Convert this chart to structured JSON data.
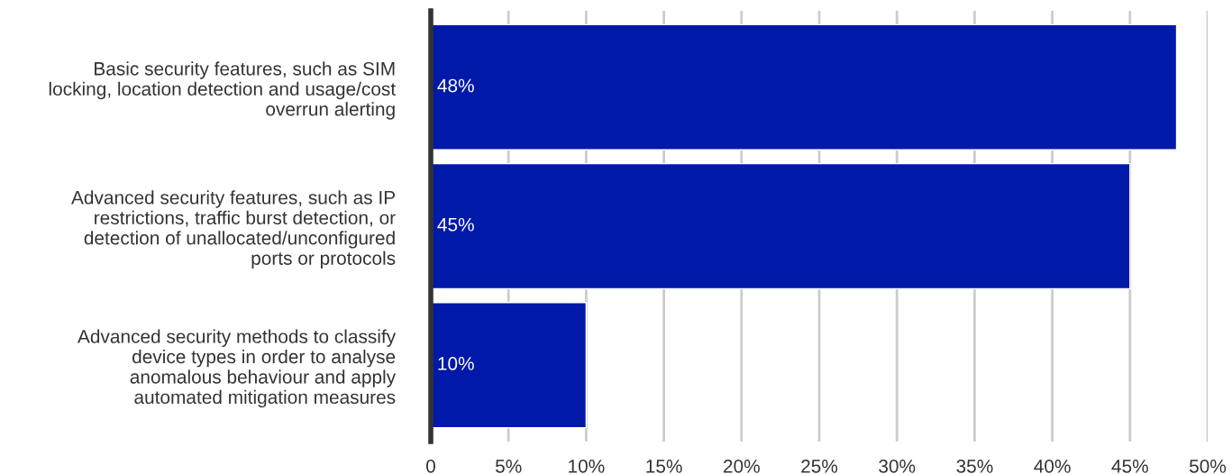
{
  "chart_data": {
    "type": "bar",
    "orientation": "horizontal",
    "categories": [
      "Basic security features, such as SIM\nlocking, location detection and usage/cost\noverrun alerting",
      "Advanced security features, such as IP\nrestrictions, traffic burst detection, or\ndetection of unallocated/unconfigured\nports or protocols",
      "Advanced security methods to classify\ndevice types in order to analyse\nanomalous behaviour and apply\nautomated mitigation measures"
    ],
    "values": [
      48,
      45,
      10
    ],
    "value_labels": [
      "48%",
      "45%",
      "10%"
    ],
    "color": "#0019a8",
    "xlim": [
      0,
      50
    ],
    "xticks": [
      0,
      {
        "value": 5,
        "label": "5%"
      },
      {
        "value": 10,
        "label": "10%"
      },
      {
        "value": 15,
        "label": "15%"
      },
      {
        "value": 20,
        "label": "20%"
      },
      {
        "value": 25,
        "label": "25%"
      },
      {
        "value": 30,
        "label": "30%"
      },
      {
        "value": 35,
        "label": "35%"
      },
      {
        "value": 40,
        "label": "40%"
      },
      {
        "value": 45,
        "label": "45%"
      },
      {
        "value": 50,
        "label": "50%"
      }
    ],
    "grid": "x",
    "legend": false
  }
}
